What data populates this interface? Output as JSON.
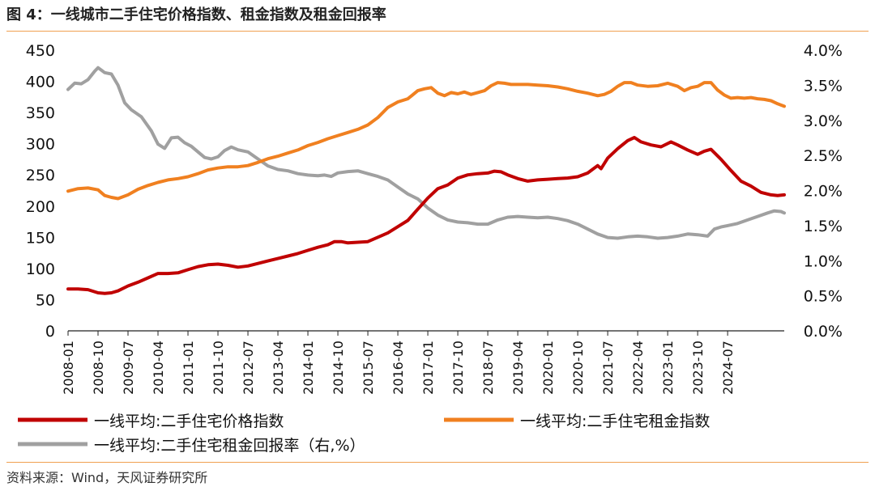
{
  "figure": {
    "title": "图 4：一线城市二手住宅价格指数、租金指数及租金回报率",
    "source": "资料来源：Wind，天风证券研究所"
  },
  "colors": {
    "price": "#c00000",
    "rent": "#f08020",
    "yield": "#a0a0a0",
    "accent": "#f0a050"
  },
  "chart_data": {
    "type": "line",
    "x_tick_labels": [
      "2008-01",
      "2008-10",
      "2009-07",
      "2010-04",
      "2011-01",
      "2011-10",
      "2012-07",
      "2013-04",
      "2014-01",
      "2014-10",
      "2015-07",
      "2016-04",
      "2017-01",
      "2017-10",
      "2018-07",
      "2019-04",
      "2020-01",
      "2020-10",
      "2021-07",
      "2022-04",
      "2023-01",
      "2023-10",
      "2024-07"
    ],
    "y_left": {
      "min": 0,
      "max": 450,
      "ticks": [
        0,
        50,
        100,
        150,
        200,
        250,
        300,
        350,
        400,
        450
      ],
      "tick_labels": [
        "0",
        "50",
        "100",
        "150",
        "200",
        "250",
        "300",
        "350",
        "400",
        "450"
      ]
    },
    "y_right": {
      "min": 0,
      "max": 4.0,
      "ticks": [
        0,
        0.5,
        1.0,
        1.5,
        2.0,
        2.5,
        3.0,
        3.5,
        4.0
      ],
      "tick_labels": [
        "0.0%",
        "0.5%",
        "1.0%",
        "1.5%",
        "2.0%",
        "2.5%",
        "3.0%",
        "3.5%",
        "4.0%"
      ]
    },
    "series": [
      {
        "name": "一线平均:二手住宅价格指数",
        "axis": "left",
        "color_key": "price",
        "points": [
          [
            0,
            67
          ],
          [
            3,
            67
          ],
          [
            6,
            66
          ],
          [
            9,
            61
          ],
          [
            11,
            60
          ],
          [
            13,
            61
          ],
          [
            15,
            64
          ],
          [
            18,
            72
          ],
          [
            21,
            78
          ],
          [
            24,
            85
          ],
          [
            27,
            92
          ],
          [
            30,
            92
          ],
          [
            33,
            93
          ],
          [
            36,
            98
          ],
          [
            39,
            103
          ],
          [
            42,
            106
          ],
          [
            45,
            107
          ],
          [
            48,
            105
          ],
          [
            51,
            102
          ],
          [
            54,
            104
          ],
          [
            57,
            108
          ],
          [
            60,
            112
          ],
          [
            63,
            116
          ],
          [
            66,
            120
          ],
          [
            69,
            124
          ],
          [
            72,
            129
          ],
          [
            75,
            134
          ],
          [
            78,
            138
          ],
          [
            80,
            143
          ],
          [
            82,
            143
          ],
          [
            84,
            141
          ],
          [
            87,
            142
          ],
          [
            90,
            143
          ],
          [
            93,
            150
          ],
          [
            96,
            157
          ],
          [
            99,
            167
          ],
          [
            102,
            177
          ],
          [
            105,
            195
          ],
          [
            108,
            213
          ],
          [
            111,
            228
          ],
          [
            114,
            234
          ],
          [
            117,
            245
          ],
          [
            120,
            250
          ],
          [
            123,
            252
          ],
          [
            126,
            253
          ],
          [
            128,
            256
          ],
          [
            130,
            255
          ],
          [
            132,
            250
          ],
          [
            135,
            244
          ],
          [
            138,
            240
          ],
          [
            141,
            242
          ],
          [
            144,
            243
          ],
          [
            147,
            244
          ],
          [
            150,
            245
          ],
          [
            153,
            247
          ],
          [
            156,
            253
          ],
          [
            159,
            265
          ],
          [
            160,
            260
          ],
          [
            162,
            277
          ],
          [
            165,
            292
          ],
          [
            168,
            305
          ],
          [
            170,
            310
          ],
          [
            172,
            303
          ],
          [
            175,
            298
          ],
          [
            178,
            295
          ],
          [
            181,
            303
          ],
          [
            183,
            298
          ],
          [
            186,
            290
          ],
          [
            189,
            283
          ],
          [
            191,
            288
          ],
          [
            193,
            291
          ],
          [
            196,
            275
          ],
          [
            199,
            257
          ],
          [
            202,
            240
          ],
          [
            205,
            232
          ],
          [
            208,
            222
          ],
          [
            211,
            218
          ],
          [
            213,
            217
          ],
          [
            215,
            218
          ]
        ]
      },
      {
        "name": "一线平均:二手住宅租金指数",
        "axis": "left",
        "color_key": "rent",
        "points": [
          [
            0,
            224
          ],
          [
            3,
            228
          ],
          [
            6,
            229
          ],
          [
            9,
            226
          ],
          [
            11,
            217
          ],
          [
            13,
            214
          ],
          [
            15,
            212
          ],
          [
            18,
            218
          ],
          [
            21,
            227
          ],
          [
            24,
            233
          ],
          [
            27,
            238
          ],
          [
            30,
            242
          ],
          [
            33,
            244
          ],
          [
            36,
            247
          ],
          [
            39,
            252
          ],
          [
            42,
            258
          ],
          [
            45,
            261
          ],
          [
            48,
            263
          ],
          [
            51,
            263
          ],
          [
            54,
            265
          ],
          [
            57,
            270
          ],
          [
            60,
            276
          ],
          [
            63,
            280
          ],
          [
            66,
            285
          ],
          [
            69,
            290
          ],
          [
            72,
            297
          ],
          [
            75,
            302
          ],
          [
            78,
            308
          ],
          [
            81,
            313
          ],
          [
            84,
            318
          ],
          [
            87,
            323
          ],
          [
            90,
            330
          ],
          [
            93,
            342
          ],
          [
            96,
            358
          ],
          [
            99,
            367
          ],
          [
            102,
            372
          ],
          [
            105,
            385
          ],
          [
            107,
            388
          ],
          [
            109,
            390
          ],
          [
            111,
            381
          ],
          [
            113,
            377
          ],
          [
            115,
            382
          ],
          [
            117,
            380
          ],
          [
            119,
            383
          ],
          [
            121,
            379
          ],
          [
            123,
            382
          ],
          [
            125,
            385
          ],
          [
            127,
            393
          ],
          [
            129,
            398
          ],
          [
            131,
            397
          ],
          [
            133,
            395
          ],
          [
            135,
            395
          ],
          [
            138,
            395
          ],
          [
            141,
            394
          ],
          [
            144,
            393
          ],
          [
            147,
            391
          ],
          [
            150,
            388
          ],
          [
            153,
            384
          ],
          [
            156,
            381
          ],
          [
            159,
            377
          ],
          [
            161,
            379
          ],
          [
            163,
            384
          ],
          [
            165,
            392
          ],
          [
            167,
            398
          ],
          [
            169,
            398
          ],
          [
            171,
            394
          ],
          [
            174,
            392
          ],
          [
            177,
            393
          ],
          [
            180,
            397
          ],
          [
            183,
            392
          ],
          [
            185,
            385
          ],
          [
            187,
            390
          ],
          [
            189,
            392
          ],
          [
            191,
            398
          ],
          [
            193,
            398
          ],
          [
            195,
            386
          ],
          [
            197,
            378
          ],
          [
            199,
            373
          ],
          [
            201,
            374
          ],
          [
            203,
            373
          ],
          [
            205,
            374
          ],
          [
            207,
            372
          ],
          [
            209,
            371
          ],
          [
            211,
            369
          ],
          [
            213,
            364
          ],
          [
            215,
            360
          ]
        ]
      },
      {
        "name": "一线平均:二手住宅租金回报率（右,%）",
        "axis": "right",
        "color_key": "yield",
        "points": [
          [
            0,
            3.44
          ],
          [
            2,
            3.53
          ],
          [
            4,
            3.52
          ],
          [
            6,
            3.58
          ],
          [
            8,
            3.7
          ],
          [
            9,
            3.75
          ],
          [
            11,
            3.68
          ],
          [
            13,
            3.66
          ],
          [
            15,
            3.5
          ],
          [
            17,
            3.25
          ],
          [
            19,
            3.15
          ],
          [
            22,
            3.05
          ],
          [
            25,
            2.85
          ],
          [
            27,
            2.66
          ],
          [
            29,
            2.6
          ],
          [
            31,
            2.75
          ],
          [
            33,
            2.76
          ],
          [
            35,
            2.68
          ],
          [
            37,
            2.63
          ],
          [
            39,
            2.55
          ],
          [
            41,
            2.47
          ],
          [
            43,
            2.45
          ],
          [
            45,
            2.48
          ],
          [
            47,
            2.57
          ],
          [
            49,
            2.62
          ],
          [
            51,
            2.58
          ],
          [
            54,
            2.55
          ],
          [
            57,
            2.45
          ],
          [
            60,
            2.35
          ],
          [
            63,
            2.3
          ],
          [
            66,
            2.28
          ],
          [
            69,
            2.24
          ],
          [
            72,
            2.22
          ],
          [
            75,
            2.21
          ],
          [
            77,
            2.22
          ],
          [
            79,
            2.2
          ],
          [
            81,
            2.25
          ],
          [
            84,
            2.27
          ],
          [
            87,
            2.28
          ],
          [
            90,
            2.24
          ],
          [
            93,
            2.2
          ],
          [
            96,
            2.15
          ],
          [
            99,
            2.05
          ],
          [
            102,
            1.95
          ],
          [
            105,
            1.88
          ],
          [
            108,
            1.75
          ],
          [
            111,
            1.65
          ],
          [
            114,
            1.58
          ],
          [
            117,
            1.55
          ],
          [
            120,
            1.54
          ],
          [
            123,
            1.52
          ],
          [
            126,
            1.52
          ],
          [
            129,
            1.58
          ],
          [
            132,
            1.62
          ],
          [
            135,
            1.63
          ],
          [
            138,
            1.62
          ],
          [
            141,
            1.61
          ],
          [
            144,
            1.62
          ],
          [
            147,
            1.6
          ],
          [
            150,
            1.57
          ],
          [
            153,
            1.52
          ],
          [
            156,
            1.45
          ],
          [
            159,
            1.38
          ],
          [
            162,
            1.33
          ],
          [
            165,
            1.32
          ],
          [
            168,
            1.34
          ],
          [
            171,
            1.35
          ],
          [
            174,
            1.34
          ],
          [
            177,
            1.32
          ],
          [
            180,
            1.33
          ],
          [
            183,
            1.35
          ],
          [
            186,
            1.38
          ],
          [
            189,
            1.37
          ],
          [
            192,
            1.35
          ],
          [
            194,
            1.45
          ],
          [
            196,
            1.48
          ],
          [
            198,
            1.5
          ],
          [
            201,
            1.53
          ],
          [
            204,
            1.58
          ],
          [
            207,
            1.63
          ],
          [
            210,
            1.68
          ],
          [
            212,
            1.71
          ],
          [
            214,
            1.7
          ],
          [
            215,
            1.68
          ]
        ]
      }
    ],
    "legend": {
      "price_label": "一线平均:二手住宅价格指数",
      "rent_label": "一线平均:二手住宅租金指数",
      "yield_label": "一线平均:二手住宅租金回报率（右,%）"
    }
  }
}
